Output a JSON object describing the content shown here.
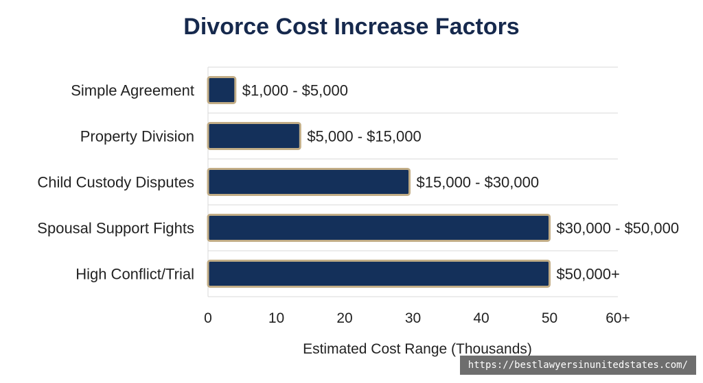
{
  "chart_data": {
    "type": "bar",
    "orientation": "horizontal",
    "title": "Divorce Cost Increase Factors",
    "xlabel": "Estimated Cost Range (Thousands)",
    "ylabel": "",
    "categories": [
      "Simple Agreement",
      "Property Division",
      "Child Custody Disputes",
      "Spousal Support Fights",
      "High Conflict/Trial"
    ],
    "values": [
      4,
      13.5,
      29.5,
      50,
      50
    ],
    "data_labels": [
      "$1,000 - $5,000",
      "$5,000 - $15,000",
      "$15,000 - $30,000",
      "$30,000 - $50,000",
      "$50,000+"
    ],
    "xticks": [
      "0",
      "10",
      "20",
      "30",
      "40",
      "50",
      "60+"
    ],
    "xlim": [
      0,
      60
    ],
    "grid": "horizontal",
    "colors": {
      "bar_fill": "#14305a",
      "bar_border": "#c2ad86",
      "title": "#16294d",
      "grid": "#d9d9d9"
    }
  },
  "watermark": "https://bestlawyersinunitedstates.com/"
}
